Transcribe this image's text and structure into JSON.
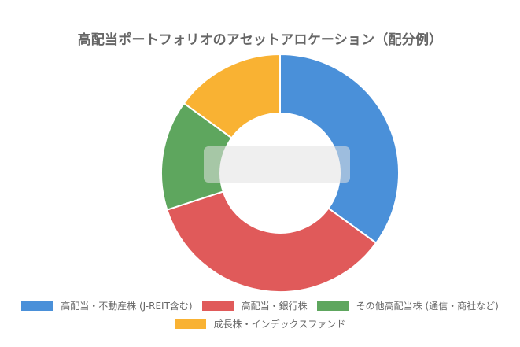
{
  "chart_data": {
    "type": "donut",
    "title": "高配当ポートフォリオのアセットアロケーション（配分例）",
    "series": [
      {
        "name": "高配当・不動産株 (J-REIT含む)",
        "value": 35,
        "color": "#4a90d9"
      },
      {
        "name": "高配当・銀行株",
        "value": 35,
        "color": "#e05a5a"
      },
      {
        "name": "その他高配当株 (通信・商社など)",
        "value": 15,
        "color": "#5ea65e"
      },
      {
        "name": "成長株・インデックスファンド",
        "value": 15,
        "color": "#f9b233"
      }
    ],
    "legend_position": "bottom",
    "start_angle": "top",
    "direction": "clockwise"
  }
}
